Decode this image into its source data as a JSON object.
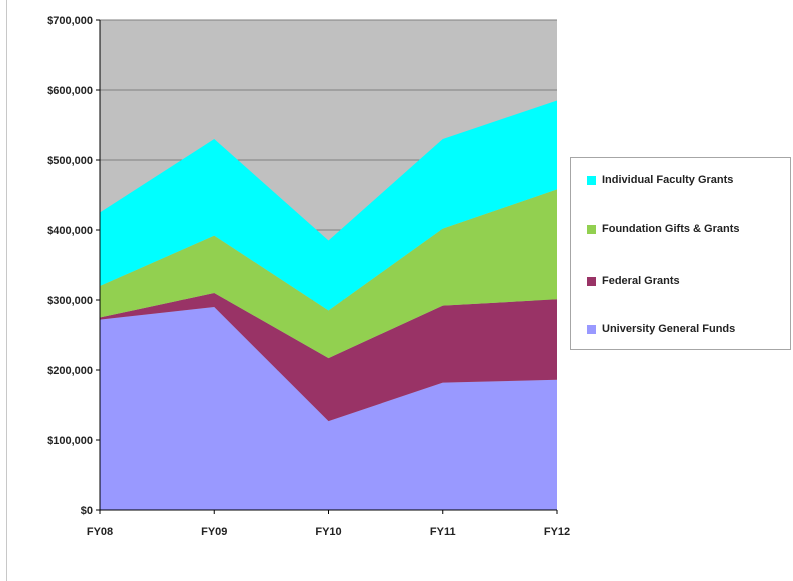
{
  "chart_data": {
    "type": "area",
    "stacked": true,
    "categories": [
      "FY08",
      "FY09",
      "FY10",
      "FY11",
      "FY12"
    ],
    "ylim": [
      0,
      700000
    ],
    "yticks": [
      0,
      100000,
      200000,
      300000,
      400000,
      500000,
      600000,
      700000
    ],
    "ytick_labels": [
      "$0",
      "$100,000",
      "$200,000",
      "$300,000",
      "$400,000",
      "$500,000",
      "$600,000",
      "$700,000"
    ],
    "grid": true,
    "plot_background": "#c0c0c0",
    "legend_position": "right",
    "series": [
      {
        "name": "University General Funds",
        "color": "#9999ff",
        "values": [
          272000,
          290000,
          127000,
          182000,
          186000
        ]
      },
      {
        "name": "Federal Grants",
        "color": "#993366",
        "values": [
          3000,
          20000,
          90000,
          110000,
          115000
        ]
      },
      {
        "name": "Foundation Gifts & Grants",
        "color": "#92d050",
        "values": [
          45000,
          82000,
          68000,
          110000,
          157000
        ]
      },
      {
        "name": "Individual Faculty Grants",
        "color": "#00ffff",
        "values": [
          105000,
          138000,
          100000,
          128000,
          127000
        ]
      }
    ],
    "legend_order": [
      "Individual Faculty Grants",
      "Foundation Gifts & Grants",
      "Federal Grants",
      "University General Funds"
    ]
  }
}
